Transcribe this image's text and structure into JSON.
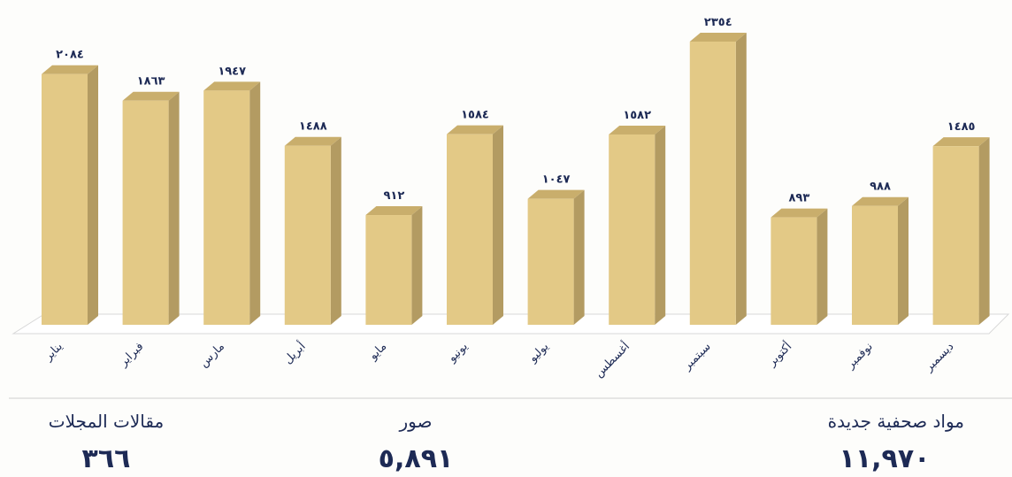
{
  "chart_data": {
    "type": "bar3d",
    "categories": [
      "يناير",
      "فبراير",
      "مارس",
      "أبريل",
      "مايو",
      "يونيو",
      "يوليو",
      "أغسطس",
      "سبتمبر",
      "أكتوبر",
      "نوفمبر",
      "ديسمبر"
    ],
    "values": [
      2084,
      1863,
      1947,
      1488,
      912,
      1584,
      1047,
      1582,
      2354,
      893,
      988,
      1485
    ],
    "value_labels": [
      "٢٠٨٤",
      "١٨٦٣",
      "١٩٤٧",
      "١٤٨٨",
      "٩١٢",
      "١٥٨٤",
      "١٠٤٧",
      "١٥٨٢",
      "٢٣٥٤",
      "٨٩٣",
      "٩٨٨",
      "١٤٨٥"
    ],
    "color": "#e3c986"
  },
  "stats": [
    {
      "label": "مواد صحفية جديدة",
      "value": "١١,٩٧٠"
    },
    {
      "label": "صور",
      "value": "٥,٨٩١"
    },
    {
      "label": "مقالات المجلات",
      "value": "٣٦٦"
    }
  ]
}
